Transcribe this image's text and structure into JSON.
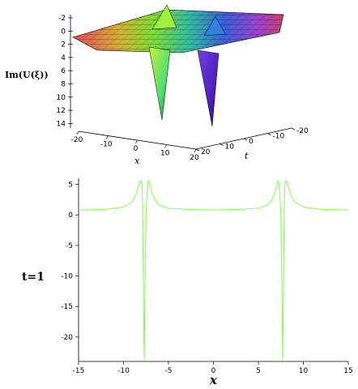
{
  "surface_plot": {
    "z_label": "Im(U(ξ))",
    "x_label": "x",
    "t_label": "t",
    "z_ticks": [
      "-2",
      "0",
      "2",
      "4",
      "6",
      "8",
      "10",
      "12",
      "14"
    ],
    "x_ticks": [
      "-20",
      "-10",
      "0",
      "10",
      "20"
    ],
    "t_ticks": [
      "20",
      "10",
      "0",
      "-10",
      "-20"
    ]
  },
  "chart_data": [
    {
      "type": "surface",
      "zlabel": "Im(U(ξ))",
      "xlabel": "x",
      "ylabel": "t",
      "xlim": [
        -20,
        20
      ],
      "ylim": [
        -20,
        20
      ],
      "zlim": [
        -2,
        14
      ],
      "features": [
        {
          "kind": "downward spike",
          "x": -7,
          "z_min": 14
        },
        {
          "kind": "downward spike",
          "x": 7,
          "z_min": 14
        },
        {
          "kind": "upward peak",
          "x": -7,
          "z_max": -2.5
        },
        {
          "kind": "upward peak",
          "x": 7,
          "z_max": -2.5
        }
      ]
    },
    {
      "type": "line",
      "title_left": "t=1",
      "xlabel": "x",
      "ylabel": "",
      "xlim": [
        -15,
        15
      ],
      "ylim": [
        -24,
        6
      ],
      "x_ticks": [
        "-15",
        "-10",
        "-5",
        "0",
        "5",
        "10",
        "15"
      ],
      "y_ticks": [
        "5",
        "0",
        "-5",
        "-10",
        "-15",
        "-20"
      ],
      "line_color": "#7dff4a",
      "series": [
        {
          "x": [
            -15,
            -12,
            -10,
            -9,
            -8.6,
            -8.3,
            -8.1,
            -7.95,
            -7.9,
            -7.8,
            -7.7,
            -7.6,
            -7.5,
            -7.4,
            -7.3,
            -7.2,
            -7.1,
            -7.0,
            -6.8,
            -6.5,
            -6.0,
            -5,
            -3,
            0,
            3,
            5,
            6.0,
            6.5,
            6.8,
            7.0,
            7.1,
            7.2,
            7.3,
            7.4,
            7.5,
            7.6,
            7.7,
            7.8,
            7.9,
            7.95,
            8.1,
            8.3,
            8.6,
            9,
            10,
            12,
            15
          ],
          "y": [
            0.8,
            0.9,
            1.3,
            2.2,
            3.4,
            4.8,
            5.6,
            5.2,
            3,
            -10,
            -24,
            -10,
            0,
            3,
            5,
            5.7,
            5.2,
            4.6,
            3.5,
            2.4,
            1.6,
            1.1,
            0.9,
            0.8,
            0.9,
            1.1,
            1.6,
            2.4,
            3.5,
            4.6,
            5.2,
            5.7,
            5,
            3,
            0,
            -10,
            -24,
            -10,
            3,
            5.2,
            5.6,
            4.8,
            3.4,
            2.2,
            1.3,
            0.9,
            0.8
          ]
        }
      ]
    }
  ]
}
